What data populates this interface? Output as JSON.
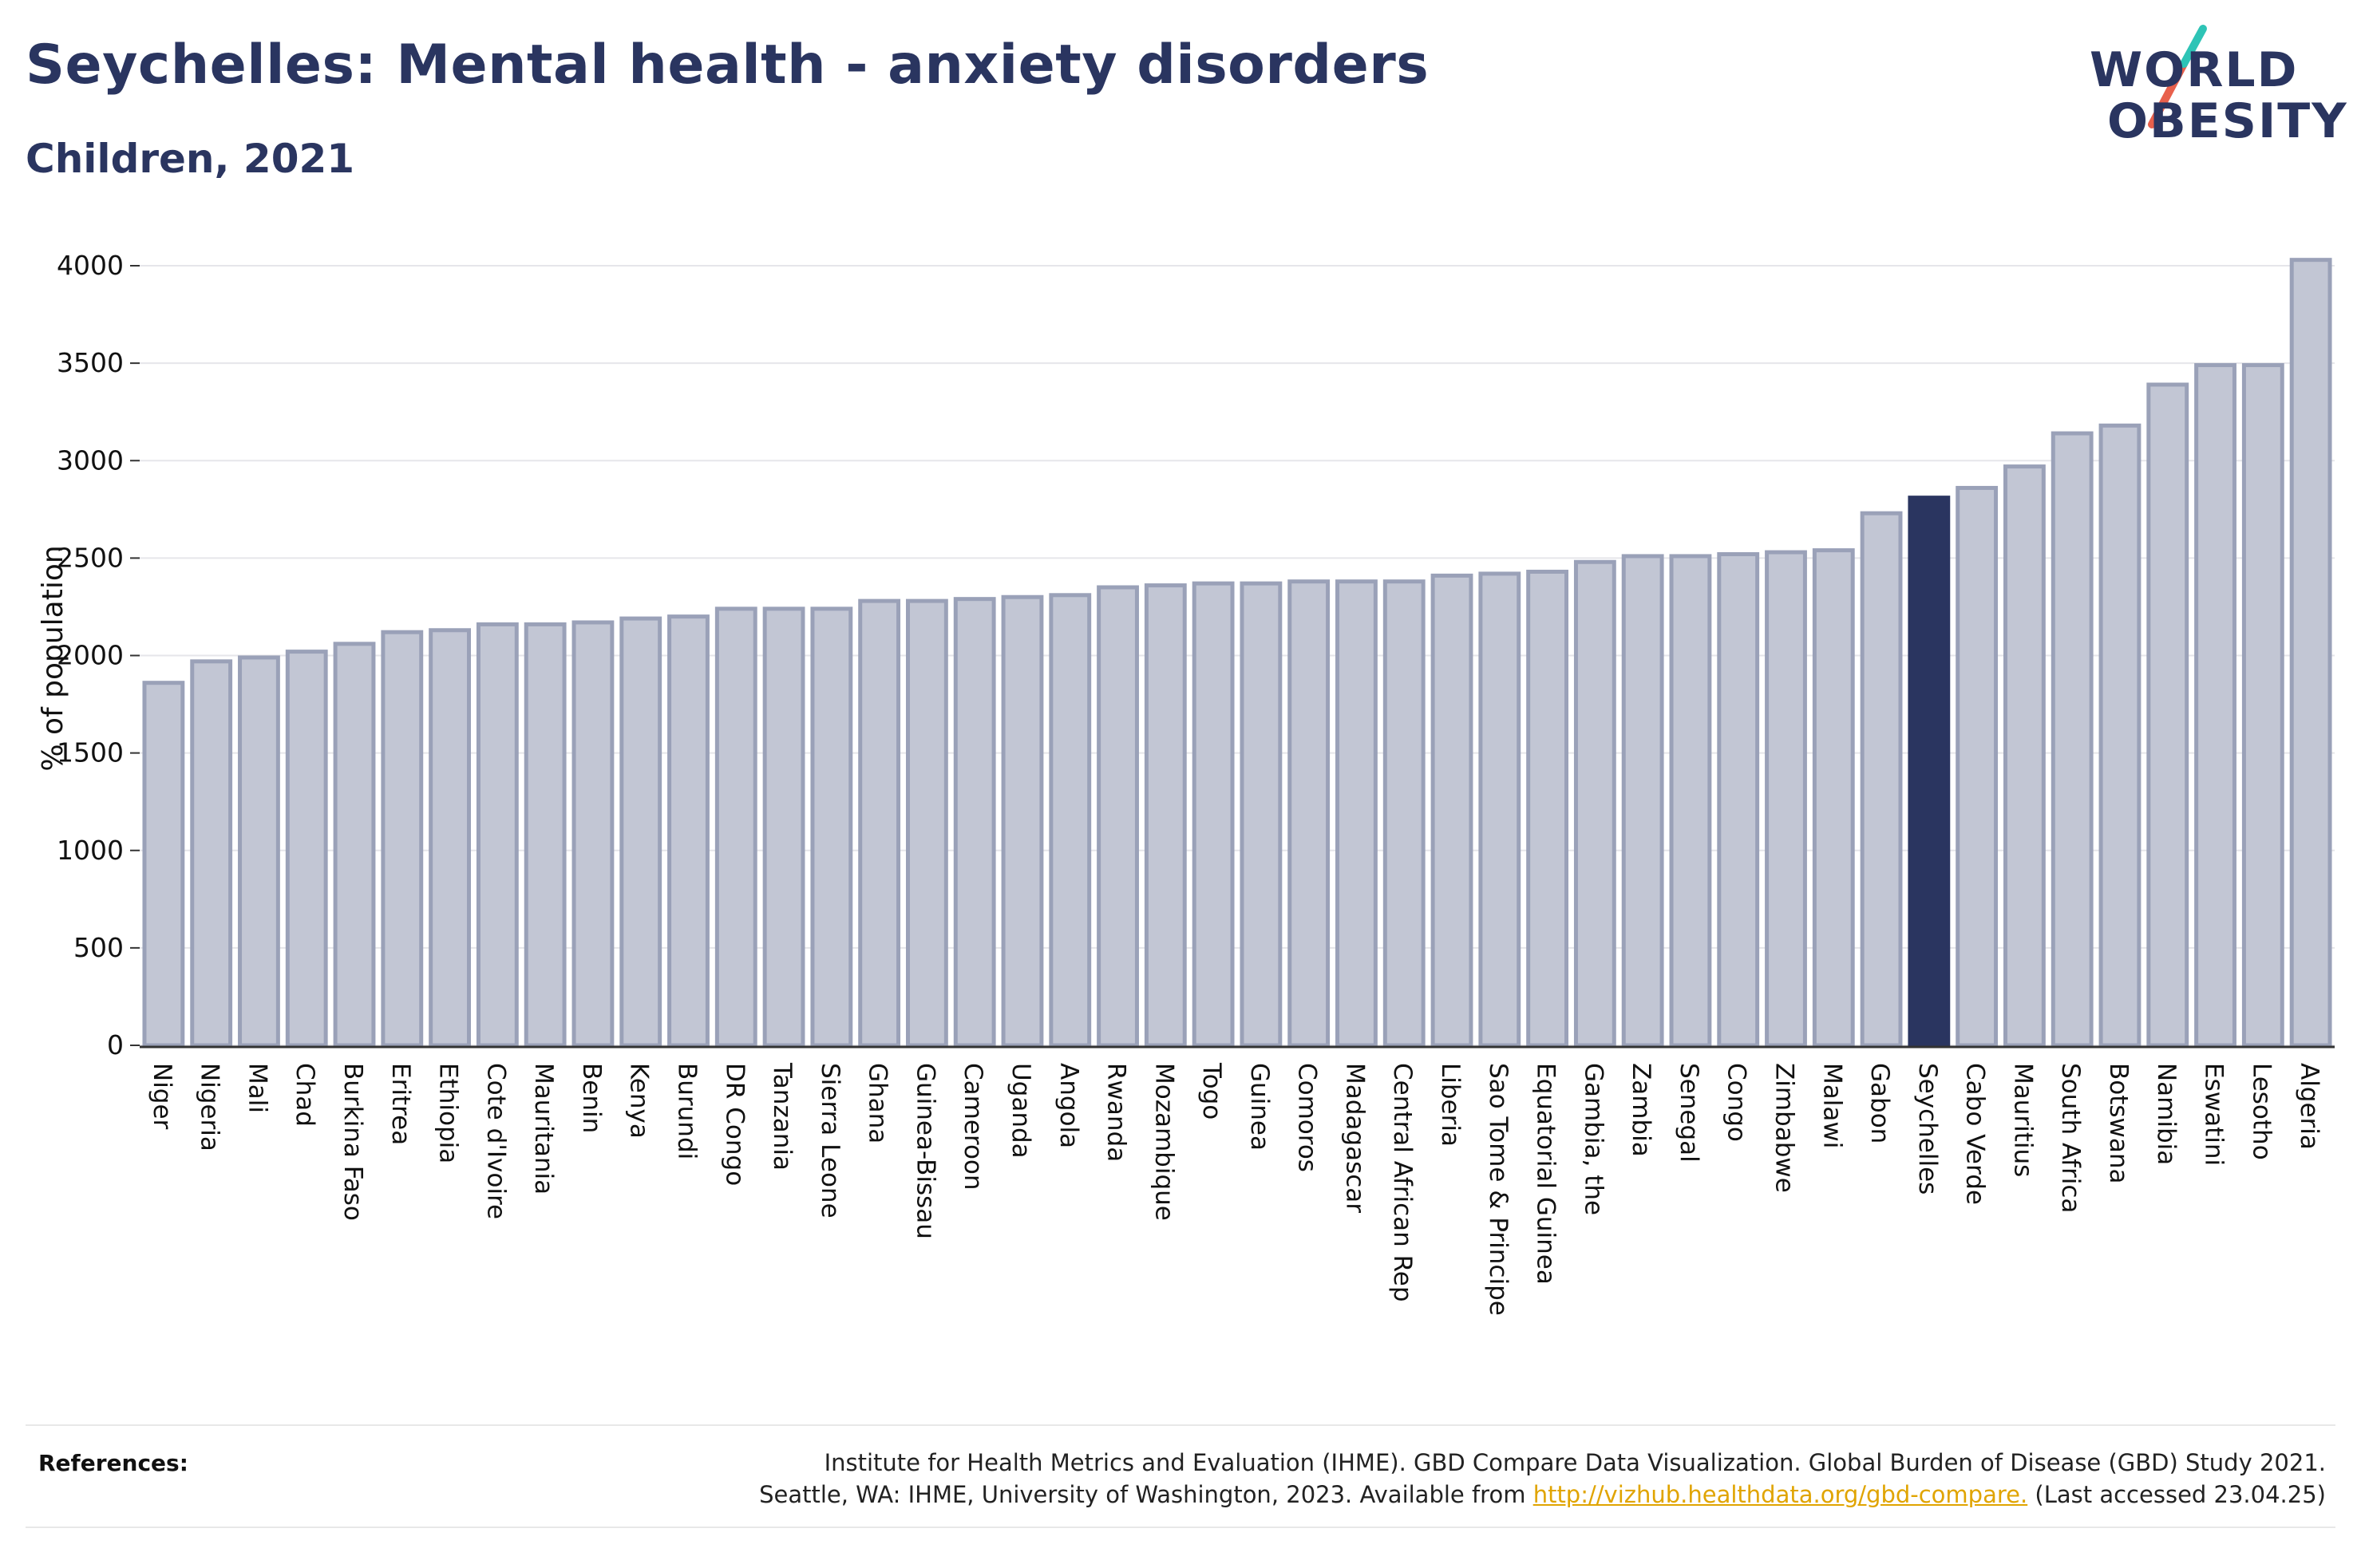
{
  "header": {
    "title": "Seychelles: Mental health - anxiety disorders",
    "subtitle": "Children, 2021"
  },
  "logo": {
    "line1": "WORLD",
    "line2": "OBESITY",
    "slash_colors": [
      "#2ec4b6",
      "#e8604c"
    ]
  },
  "colors": {
    "bar_default": "#c2c6d4",
    "bar_border": "#9aa1b8",
    "bar_highlight": "#2a3560",
    "text": "#2a3560",
    "link": "#e0a400"
  },
  "chart_data": {
    "type": "bar",
    "ylabel": "% of population",
    "ylim": [
      0,
      4200
    ],
    "yticks": [
      0,
      500,
      1000,
      1500,
      2000,
      2500,
      3000,
      3500,
      4000
    ],
    "grid": true,
    "highlight": "Seychelles",
    "categories": [
      "Niger",
      "Nigeria",
      "Mali",
      "Chad",
      "Burkina Faso",
      "Eritrea",
      "Ethiopia",
      "Cote d'Ivoire",
      "Mauritania",
      "Benin",
      "Kenya",
      "Burundi",
      "DR Congo",
      "Tanzania",
      "Sierra Leone",
      "Ghana",
      "Guinea-Bissau",
      "Cameroon",
      "Uganda",
      "Angola",
      "Rwanda",
      "Mozambique",
      "Togo",
      "Guinea",
      "Comoros",
      "Madagascar",
      "Central African Rep",
      "Liberia",
      "Sao Tome & Principe",
      "Equatorial Guinea",
      "Gambia, the",
      "Zambia",
      "Senegal",
      "Congo",
      "Zimbabwe",
      "Malawi",
      "Gabon",
      "Seychelles",
      "Cabo Verde",
      "Mauritius",
      "South Africa",
      "Botswana",
      "Namibia",
      "Eswatini",
      "Lesotho",
      "Algeria"
    ],
    "values": [
      1860,
      1970,
      1990,
      2020,
      2060,
      2120,
      2130,
      2160,
      2160,
      2170,
      2190,
      2200,
      2240,
      2240,
      2240,
      2280,
      2280,
      2290,
      2300,
      2310,
      2350,
      2360,
      2370,
      2370,
      2380,
      2380,
      2380,
      2410,
      2420,
      2430,
      2480,
      2510,
      2510,
      2520,
      2530,
      2540,
      2730,
      2810,
      2860,
      2970,
      3140,
      3180,
      3390,
      3490,
      3490,
      4030
    ]
  },
  "references": {
    "label": "References:",
    "line1": "Institute for Health Metrics and Evaluation (IHME). GBD Compare Data Visualization. Global Burden of Disease (GBD) Study 2021.",
    "line2_prefix": "Seattle, WA: IHME, University of Washington, 2023. Available from ",
    "link": "http://vizhub.healthdata.org/gbd-compare.",
    "line2_suffix": " (Last accessed 23.04.25)"
  }
}
